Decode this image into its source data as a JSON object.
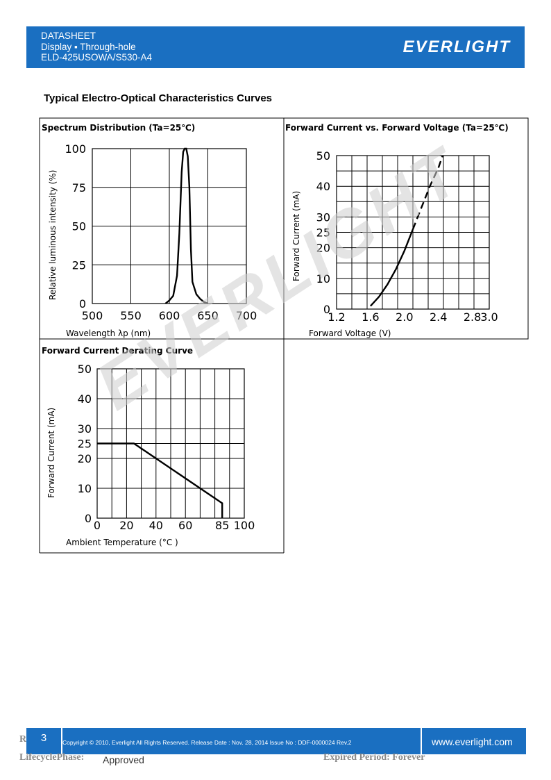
{
  "header": {
    "line1": "DATASHEET",
    "line2": "Display ▪ Through-hole",
    "line3": "ELD-425USOWA/S530-A4",
    "logo": "EVERLIGHT",
    "color": "#1a6fc1"
  },
  "section_title": "Typical Electro-Optical Characteristics Curves",
  "watermark": "EVERLIGHT",
  "charts": {
    "spectrum": {
      "title": "Spectrum Distribution (Ta=25℃)",
      "xlabel": "Wavelength λp (nm)",
      "ylabel": "Relative luminous intensity (%)",
      "xticks": [
        "500",
        "550",
        "600",
        "650",
        "700"
      ],
      "yticks": [
        "0",
        "25",
        "50",
        "75",
        "100"
      ]
    },
    "ivcurve": {
      "title": "Forward Current vs. Forward Voltage (Ta=25℃)",
      "xlabel": "Forward Voltage (V)",
      "ylabel": "Forward Current (mA)",
      "xticks": [
        "1.2",
        "1.6",
        "2.0",
        "2.4",
        "2.8",
        "3.0"
      ],
      "yticks": [
        "0",
        "10",
        "20",
        "25",
        "30",
        "40",
        "50"
      ]
    },
    "derating": {
      "title": "Forward Current Derating Curve",
      "xlabel": "Ambient Temperature (°C )",
      "ylabel": "Forward Current (mA)",
      "xticks": [
        "0",
        "20",
        "40",
        "60",
        "85",
        "100"
      ],
      "yticks": [
        "0",
        "10",
        "20",
        "25",
        "30",
        "40",
        "50"
      ]
    }
  },
  "chart_data": [
    {
      "type": "line",
      "title": "Spectrum Distribution (Ta=25℃)",
      "xlabel": "Wavelength λp (nm)",
      "ylabel": "Relative luminous intensity (%)",
      "xlim": [
        500,
        700
      ],
      "ylim": [
        0,
        100
      ],
      "x": [
        595,
        600,
        605,
        610,
        613,
        616,
        618,
        620,
        622,
        624,
        626,
        628,
        630,
        635,
        640,
        645,
        650
      ],
      "y": [
        0,
        2,
        5,
        18,
        45,
        85,
        98,
        100,
        100,
        95,
        75,
        35,
        14,
        6,
        3,
        1,
        0
      ]
    },
    {
      "type": "line",
      "title": "Forward Current vs. Forward Voltage (Ta=25℃)",
      "xlabel": "Forward Voltage (V)",
      "ylabel": "Forward Current (mA)",
      "xlim": [
        1.2,
        3.0
      ],
      "ylim": [
        0,
        50
      ],
      "x": [
        1.6,
        1.7,
        1.8,
        1.9,
        2.0,
        2.1,
        2.2,
        2.3,
        2.4,
        2.45
      ],
      "y": [
        1,
        4,
        8,
        13,
        19,
        26,
        33,
        40,
        46,
        50
      ]
    },
    {
      "type": "line",
      "title": "Forward Current Derating Curve",
      "xlabel": "Ambient Temperature (°C )",
      "ylabel": "Forward Current (mA)",
      "xlim": [
        0,
        100
      ],
      "ylim": [
        0,
        50
      ],
      "x": [
        0,
        25,
        85,
        85
      ],
      "y": [
        25,
        25,
        5,
        0
      ]
    }
  ],
  "footer": {
    "page": "3",
    "copyright": "Copyright © 2010, Everlight All Rights Reserved. Release Date : Nov. 28, 2014 Issue No : DDF-0000024   Rev.2",
    "website": "www.everlight.com"
  },
  "lifecycle": {
    "r_fragment": "R",
    "label": "LifecyclePhase:",
    "value": "Approved",
    "expired": "Expired Period: Forever"
  }
}
